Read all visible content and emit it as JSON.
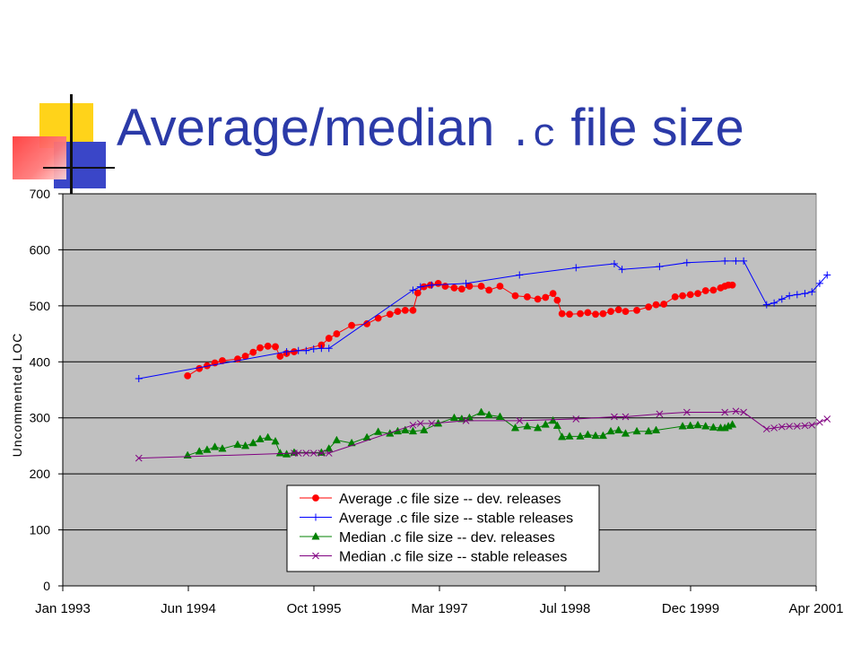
{
  "slide": {
    "title_part1": "Average/median ",
    "title_code": ".c",
    "title_part2": " file size"
  },
  "colors": {
    "title": "#2b3aa8",
    "plot_background": "#c0c0c0",
    "deco_yellow": "#ffd31a",
    "deco_blue": "#3a46c8",
    "deco_red": "#ff3b3b"
  },
  "chart_data": {
    "type": "line",
    "title": "",
    "xlabel": "",
    "ylabel": "Uncommented LOC",
    "ylim": [
      0,
      700
    ],
    "yticks": [
      0,
      100,
      200,
      300,
      400,
      500,
      600,
      700
    ],
    "xlim": [
      "1993-01",
      "2001-04"
    ],
    "xticks": [
      "Jan 1993",
      "Jun 1994",
      "Oct 1995",
      "Mar 1997",
      "Jul 1998",
      "Dec 1999",
      "Apr 2001"
    ],
    "grid": "horizontal",
    "legend_position": "bottom-center inside plot",
    "series": [
      {
        "name": "Average .c file size -- dev. releases",
        "color": "#ff0000",
        "marker": "circle",
        "points": [
          [
            "1994-05-15",
            375
          ],
          [
            "1994-07-01",
            388
          ],
          [
            "1994-08-01",
            393
          ],
          [
            "1994-09-01",
            398
          ],
          [
            "1994-10-01",
            402
          ],
          [
            "1994-12-01",
            405
          ],
          [
            "1995-01-01",
            410
          ],
          [
            "1995-02-01",
            417
          ],
          [
            "1995-03-01",
            425
          ],
          [
            "1995-04-01",
            428
          ],
          [
            "1995-05-01",
            427
          ],
          [
            "1995-05-20",
            410
          ],
          [
            "1995-06-15",
            415
          ],
          [
            "1995-07-15",
            418
          ],
          [
            "1995-11-01",
            430
          ],
          [
            "1995-12-01",
            442
          ],
          [
            "1996-01-01",
            450
          ],
          [
            "1996-03-01",
            465
          ],
          [
            "1996-05-01",
            468
          ],
          [
            "1996-06-15",
            478
          ],
          [
            "1996-08-01",
            485
          ],
          [
            "1996-09-01",
            490
          ],
          [
            "1996-10-01",
            492
          ],
          [
            "1996-11-01",
            492
          ],
          [
            "1996-11-20",
            523
          ],
          [
            "1996-12-15",
            534
          ],
          [
            "1997-01-10",
            537
          ],
          [
            "1997-02-10",
            540
          ],
          [
            "1997-03-10",
            535
          ],
          [
            "1997-04-15",
            532
          ],
          [
            "1997-05-15",
            530
          ],
          [
            "1997-06-15",
            535
          ],
          [
            "1997-08-01",
            535
          ],
          [
            "1997-09-01",
            528
          ],
          [
            "1997-10-15",
            535
          ],
          [
            "1997-12-15",
            518
          ],
          [
            "1998-02-01",
            516
          ],
          [
            "1998-03-15",
            512
          ],
          [
            "1998-04-15",
            515
          ],
          [
            "1998-05-15",
            522
          ],
          [
            "1998-06-01",
            510
          ],
          [
            "1998-06-20",
            486
          ],
          [
            "1998-07-20",
            485
          ],
          [
            "1998-09-01",
            486
          ],
          [
            "1998-10-01",
            488
          ],
          [
            "1998-11-01",
            485
          ],
          [
            "1998-12-01",
            486
          ],
          [
            "1999-01-01",
            490
          ],
          [
            "1999-02-01",
            493
          ],
          [
            "1999-03-01",
            490
          ],
          [
            "1999-04-15",
            492
          ],
          [
            "1999-06-01",
            498
          ],
          [
            "1999-07-01",
            502
          ],
          [
            "1999-08-01",
            503
          ],
          [
            "1999-09-15",
            516
          ],
          [
            "1999-10-15",
            518
          ],
          [
            "1999-11-15",
            520
          ],
          [
            "1999-12-15",
            522
          ],
          [
            "2000-01-15",
            527
          ],
          [
            "2000-02-15",
            528
          ],
          [
            "2000-03-15",
            532
          ],
          [
            "2000-04-01",
            535
          ],
          [
            "2000-04-15",
            537
          ],
          [
            "2000-05-01",
            537
          ]
        ]
      },
      {
        "name": "Average .c file size -- stable releases",
        "color": "#0000ff",
        "marker": "plus",
        "points": [
          [
            "1993-11-01",
            370
          ],
          [
            "1995-06-15",
            418
          ],
          [
            "1995-08-01",
            420
          ],
          [
            "1995-09-01",
            420
          ],
          [
            "1995-10-01",
            423
          ],
          [
            "1995-11-01",
            424
          ],
          [
            "1995-12-01",
            424
          ],
          [
            "1996-11-01",
            528
          ],
          [
            "1996-12-01",
            534
          ],
          [
            "1997-01-15",
            537
          ],
          [
            "1997-06-01",
            540
          ],
          [
            "1998-01-01",
            555
          ],
          [
            "1998-08-15",
            568
          ],
          [
            "1999-01-15",
            575
          ],
          [
            "1999-02-15",
            565
          ],
          [
            "1999-07-15",
            570
          ],
          [
            "1999-11-01",
            577
          ],
          [
            "2000-04-01",
            580
          ],
          [
            "2000-05-15",
            580
          ],
          [
            "2000-06-15",
            580
          ],
          [
            "2000-09-15",
            502
          ],
          [
            "2000-10-15",
            505
          ],
          [
            "2000-11-15",
            512
          ],
          [
            "2000-12-15",
            518
          ],
          [
            "2001-01-15",
            520
          ],
          [
            "2001-02-15",
            522
          ],
          [
            "2001-03-15",
            525
          ],
          [
            "2001-04-15",
            540
          ],
          [
            "2001-05-15",
            555
          ]
        ]
      },
      {
        "name": "Median .c file size -- dev. releases",
        "color": "#008000",
        "marker": "triangle",
        "points": [
          [
            "1994-05-15",
            233
          ],
          [
            "1994-07-01",
            240
          ],
          [
            "1994-08-01",
            243
          ],
          [
            "1994-09-01",
            248
          ],
          [
            "1994-10-01",
            245
          ],
          [
            "1994-12-01",
            252
          ],
          [
            "1995-01-01",
            250
          ],
          [
            "1995-02-01",
            255
          ],
          [
            "1995-03-01",
            262
          ],
          [
            "1995-04-01",
            265
          ],
          [
            "1995-05-01",
            258
          ],
          [
            "1995-05-20",
            237
          ],
          [
            "1995-06-15",
            235
          ],
          [
            "1995-07-15",
            238
          ],
          [
            "1995-11-01",
            238
          ],
          [
            "1995-12-01",
            245
          ],
          [
            "1996-01-01",
            260
          ],
          [
            "1996-03-01",
            255
          ],
          [
            "1996-05-01",
            265
          ],
          [
            "1996-06-15",
            275
          ],
          [
            "1996-08-01",
            272
          ],
          [
            "1996-09-01",
            276
          ],
          [
            "1996-10-01",
            278
          ],
          [
            "1996-11-01",
            276
          ],
          [
            "1996-12-15",
            278
          ],
          [
            "1997-02-10",
            290
          ],
          [
            "1997-04-15",
            300
          ],
          [
            "1997-05-15",
            298
          ],
          [
            "1997-06-15",
            300
          ],
          [
            "1997-08-01",
            310
          ],
          [
            "1997-09-01",
            305
          ],
          [
            "1997-10-15",
            302
          ],
          [
            "1997-12-15",
            282
          ],
          [
            "1998-02-01",
            285
          ],
          [
            "1998-03-15",
            282
          ],
          [
            "1998-04-15",
            288
          ],
          [
            "1998-05-15",
            295
          ],
          [
            "1998-06-01",
            286
          ],
          [
            "1998-06-20",
            266
          ],
          [
            "1998-07-20",
            267
          ],
          [
            "1998-09-01",
            267
          ],
          [
            "1998-10-01",
            270
          ],
          [
            "1998-11-01",
            268
          ],
          [
            "1998-12-01",
            268
          ],
          [
            "1999-01-01",
            276
          ],
          [
            "1999-02-01",
            278
          ],
          [
            "1999-03-01",
            272
          ],
          [
            "1999-04-15",
            276
          ],
          [
            "1999-06-01",
            276
          ],
          [
            "1999-07-01",
            278
          ],
          [
            "1999-10-15",
            285
          ],
          [
            "1999-11-15",
            286
          ],
          [
            "1999-12-15",
            287
          ],
          [
            "2000-01-15",
            285
          ],
          [
            "2000-02-15",
            283
          ],
          [
            "2000-03-15",
            282
          ],
          [
            "2000-04-01",
            282
          ],
          [
            "2000-04-15",
            285
          ],
          [
            "2000-05-01",
            288
          ]
        ]
      },
      {
        "name": "Median .c file size -- stable releases",
        "color": "#800080",
        "marker": "x",
        "points": [
          [
            "1993-11-01",
            228
          ],
          [
            "1995-07-15",
            237
          ],
          [
            "1995-08-01",
            237
          ],
          [
            "1995-09-01",
            237
          ],
          [
            "1995-10-01",
            237
          ],
          [
            "1995-11-01",
            237
          ],
          [
            "1995-12-01",
            237
          ],
          [
            "1996-11-01",
            287
          ],
          [
            "1996-12-01",
            290
          ],
          [
            "1997-01-15",
            290
          ],
          [
            "1997-06-01",
            295
          ],
          [
            "1998-01-01",
            295
          ],
          [
            "1998-08-15",
            298
          ],
          [
            "1999-01-15",
            302
          ],
          [
            "1999-03-01",
            302
          ],
          [
            "1999-07-15",
            307
          ],
          [
            "1999-11-01",
            310
          ],
          [
            "2000-04-01",
            310
          ],
          [
            "2000-05-15",
            312
          ],
          [
            "2000-06-15",
            310
          ],
          [
            "2000-09-15",
            280
          ],
          [
            "2000-10-15",
            282
          ],
          [
            "2000-11-15",
            284
          ],
          [
            "2000-12-15",
            285
          ],
          [
            "2001-01-15",
            285
          ],
          [
            "2001-02-15",
            286
          ],
          [
            "2001-03-15",
            287
          ],
          [
            "2001-04-15",
            292
          ],
          [
            "2001-05-15",
            298
          ]
        ]
      }
    ]
  }
}
